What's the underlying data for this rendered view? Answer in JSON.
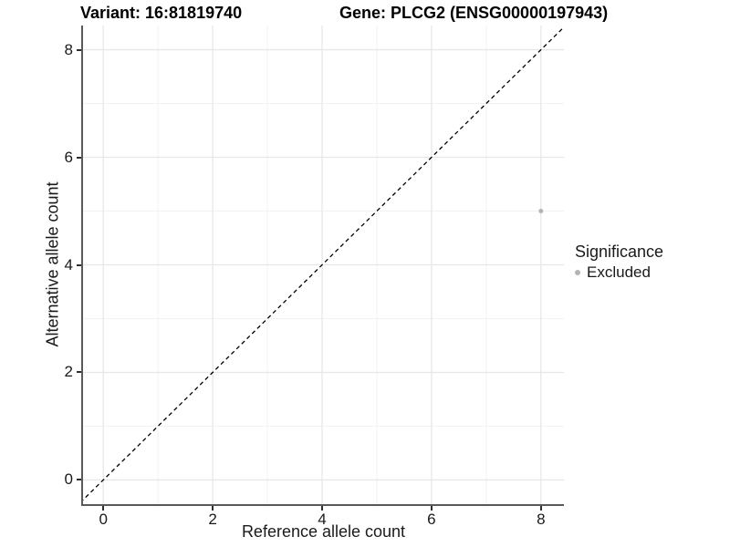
{
  "chart_data": {
    "type": "scatter",
    "titles": {
      "left": "Variant: 16:81819740",
      "right": "Gene: PLCG2 (ENSG00000197943)"
    },
    "xlabel": "Reference allele count",
    "ylabel": "Alternative allele count",
    "x_ticks": [
      0,
      2,
      4,
      6,
      8
    ],
    "y_ticks": [
      0,
      2,
      4,
      6,
      8
    ],
    "x_minor_ticks": [
      1,
      3,
      5,
      7
    ],
    "y_minor_ticks": [
      1,
      3,
      5,
      7
    ],
    "xlim": [
      -0.37,
      8.42
    ],
    "ylim": [
      -0.45,
      8.45
    ],
    "grid": true,
    "points": [
      {
        "x": 8,
        "y": 5,
        "significance": "Excluded"
      }
    ],
    "reference_line": {
      "slope": 1,
      "intercept": 0,
      "style": "dashed"
    },
    "legend": {
      "title": "Significance",
      "position": "right",
      "items": [
        {
          "label": "Excluded",
          "color": "#b4b4b4"
        }
      ]
    },
    "colors": {
      "point_excluded": "#b4b4b4",
      "grid_major": "#e7e7e7",
      "grid_minor": "#f2f2f2",
      "axis_line": "#595959",
      "tick_mark": "#2e2e2e",
      "reference_line": "#000000",
      "text": "#1a1a1a"
    }
  }
}
